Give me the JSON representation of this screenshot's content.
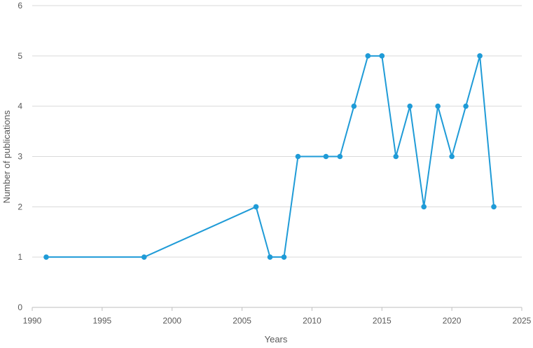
{
  "chart_data": {
    "type": "line",
    "title": "",
    "xlabel": "Years",
    "ylabel": "Number  of publications",
    "xlim": [
      1990,
      2025
    ],
    "ylim": [
      0,
      6
    ],
    "x_ticks": [
      "1990",
      "1995",
      "2000",
      "2005",
      "2010",
      "2015",
      "2020",
      "2025"
    ],
    "y_ticks": [
      "0",
      "1",
      "2",
      "3",
      "4",
      "5",
      "6"
    ],
    "grid": "horizontal",
    "legend": "none",
    "series": [
      {
        "color": "#1f9bd7",
        "points": [
          {
            "x": 1991,
            "y": 1
          },
          {
            "x": 1998,
            "y": 1
          },
          {
            "x": 2006,
            "y": 2
          },
          {
            "x": 2007,
            "y": 1
          },
          {
            "x": 2008,
            "y": 1
          },
          {
            "x": 2009,
            "y": 3
          },
          {
            "x": 2011,
            "y": 3
          },
          {
            "x": 2012,
            "y": 3
          },
          {
            "x": 2013,
            "y": 4
          },
          {
            "x": 2014,
            "y": 5
          },
          {
            "x": 2015,
            "y": 5
          },
          {
            "x": 2016,
            "y": 3
          },
          {
            "x": 2017,
            "y": 4
          },
          {
            "x": 2018,
            "y": 2
          },
          {
            "x": 2019,
            "y": 4
          },
          {
            "x": 2020,
            "y": 3
          },
          {
            "x": 2021,
            "y": 4
          },
          {
            "x": 2022,
            "y": 5
          },
          {
            "x": 2023,
            "y": 2
          }
        ]
      }
    ]
  },
  "colors": {
    "grid": "#d9d9d9",
    "axis": "#bfbfbf",
    "text": "#595959",
    "series": "#1f9bd7"
  }
}
